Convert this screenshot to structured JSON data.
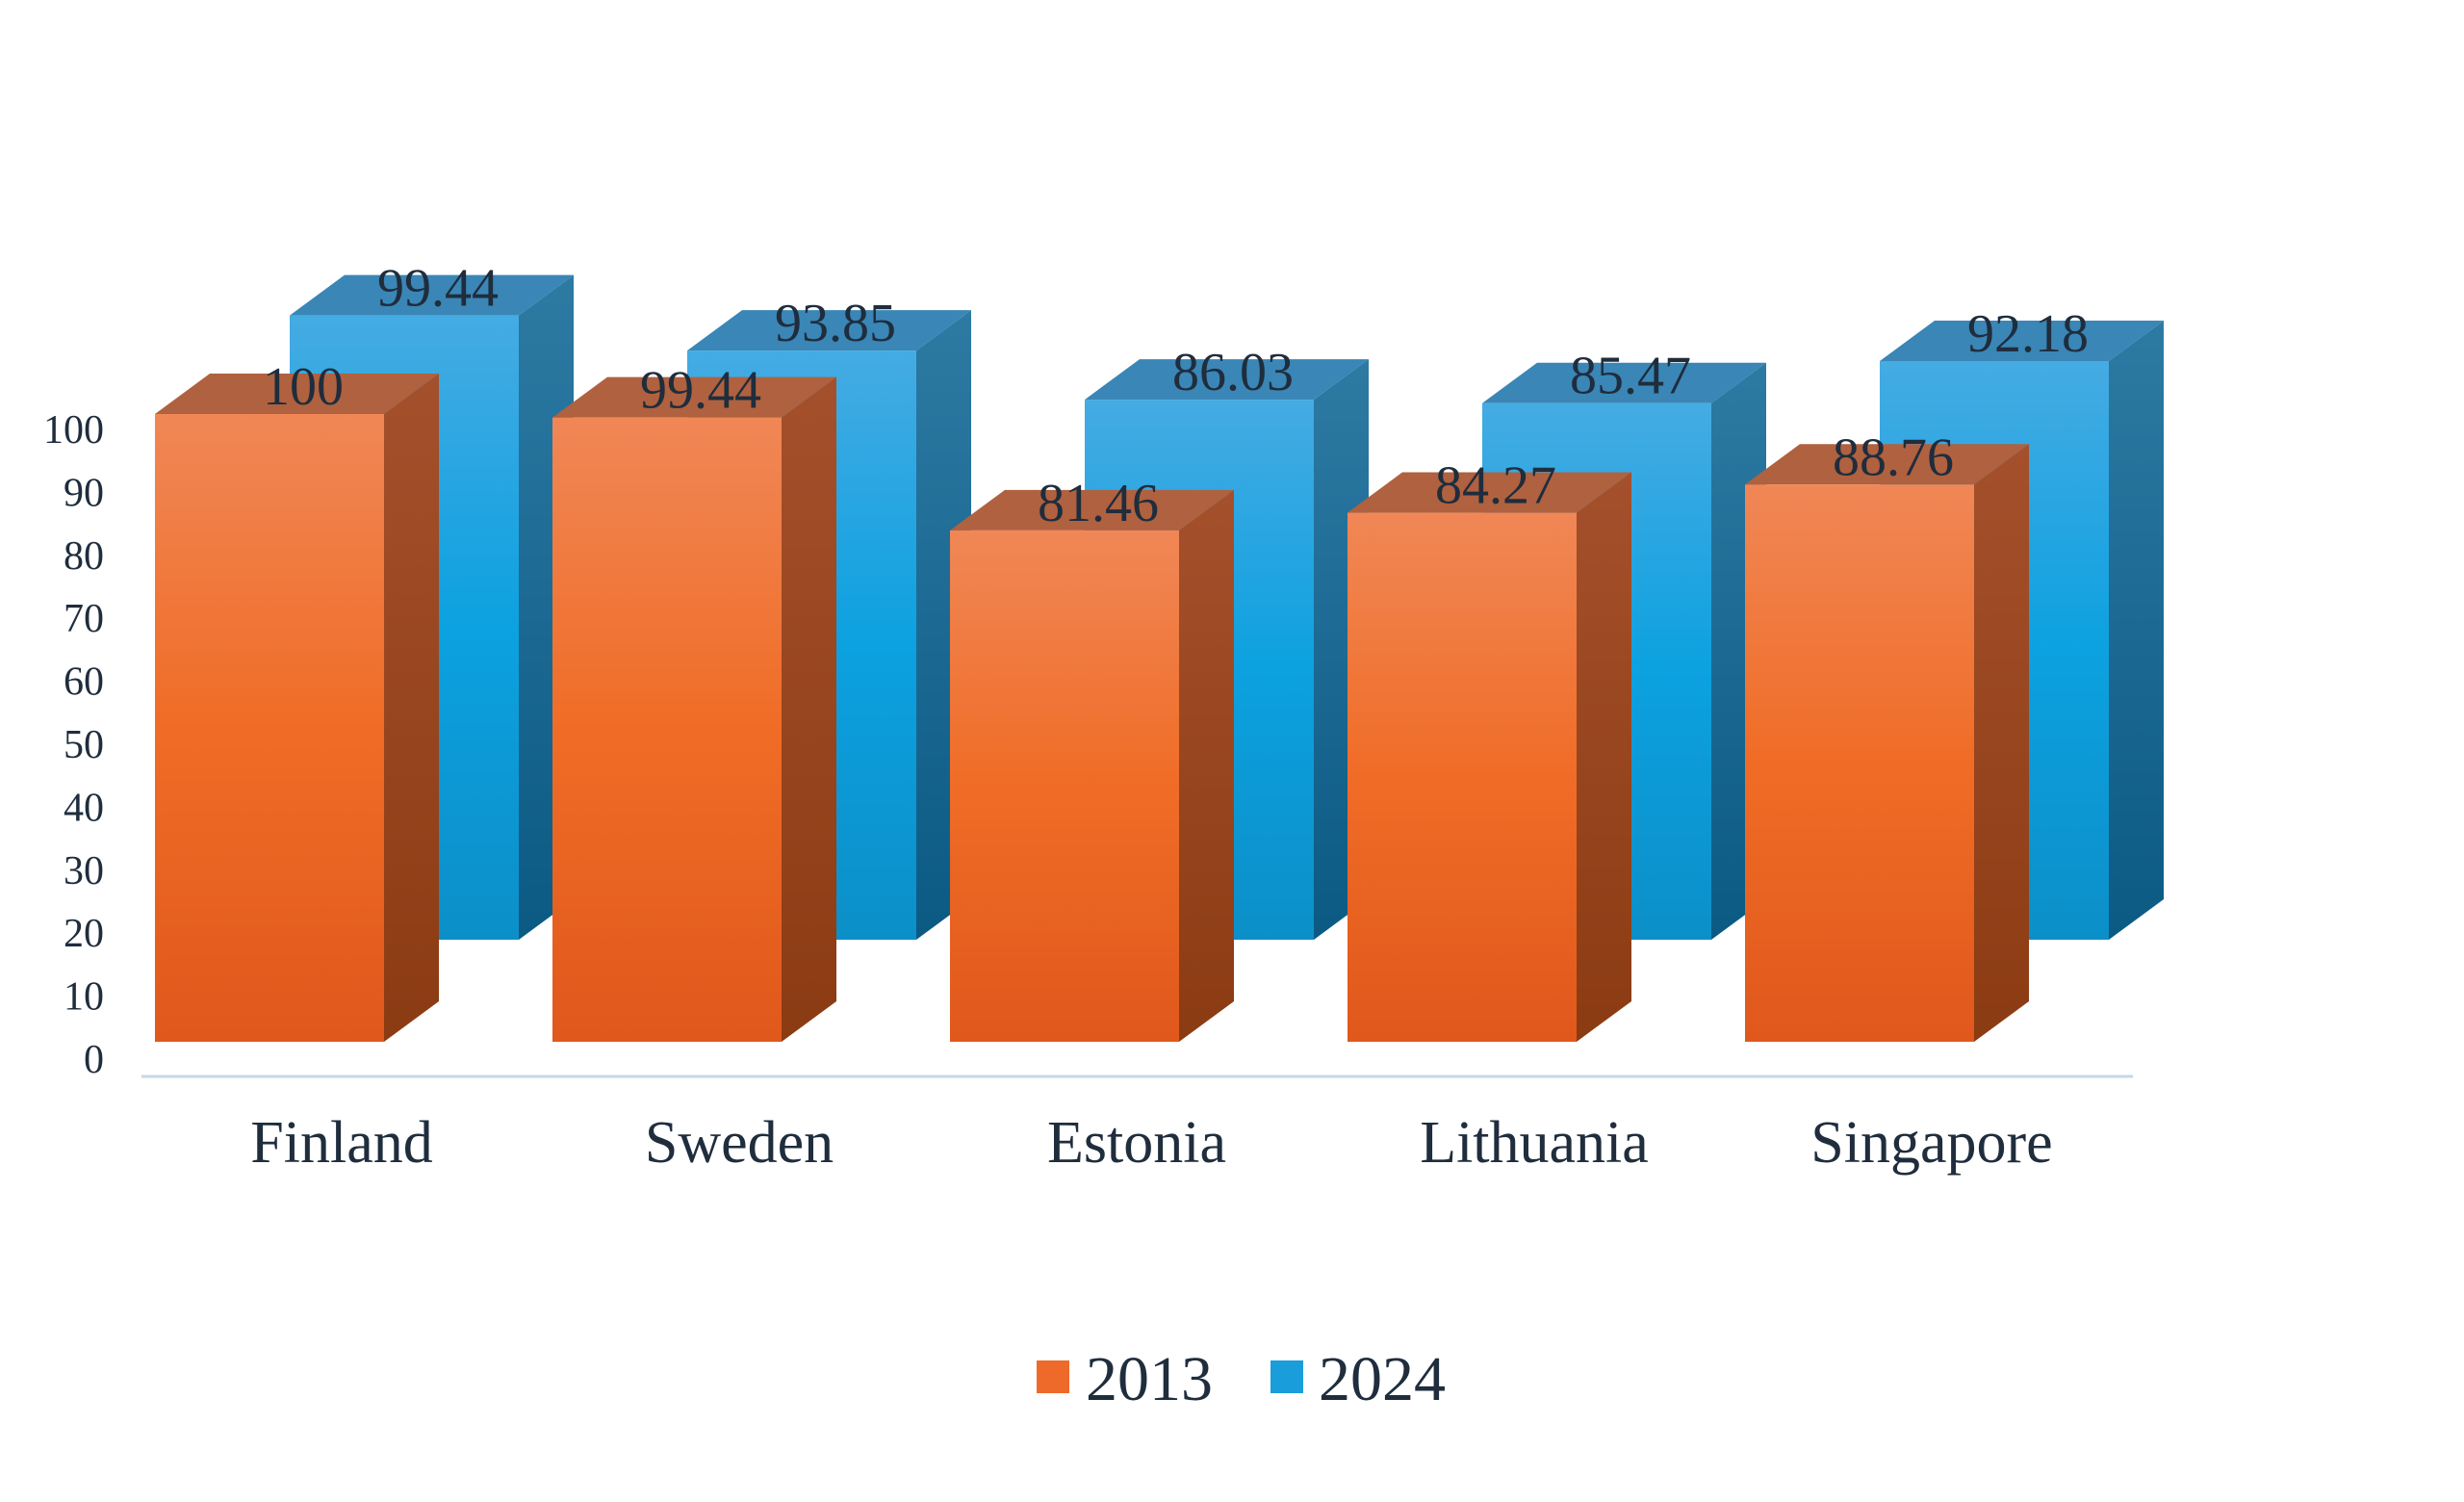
{
  "chart_data": {
    "type": "bar",
    "style": "3d-clustered-depth",
    "categories": [
      "Finland",
      "Sweden",
      "Estonia",
      "Lithuania",
      "Singapore"
    ],
    "series": [
      {
        "name": "2013",
        "values": [
          100,
          99.44,
          81.46,
          84.27,
          88.76
        ],
        "labels": [
          "100",
          "99.44",
          "81.46",
          "84.27",
          "88.76"
        ],
        "color": "#ee6a2a"
      },
      {
        "name": "2024",
        "values": [
          99.44,
          93.85,
          86.03,
          85.47,
          92.18
        ],
        "labels": [
          "99.44",
          "93.85",
          "86.03",
          "85.47",
          "92.18"
        ],
        "color": "#1a9ddb"
      }
    ],
    "yticks": [
      "0",
      "10",
      "20",
      "30",
      "40",
      "50",
      "60",
      "70",
      "80",
      "90",
      "100"
    ],
    "ylim": [
      0,
      100
    ],
    "grid": false,
    "legend": "bottom-center",
    "data_labels": true
  }
}
